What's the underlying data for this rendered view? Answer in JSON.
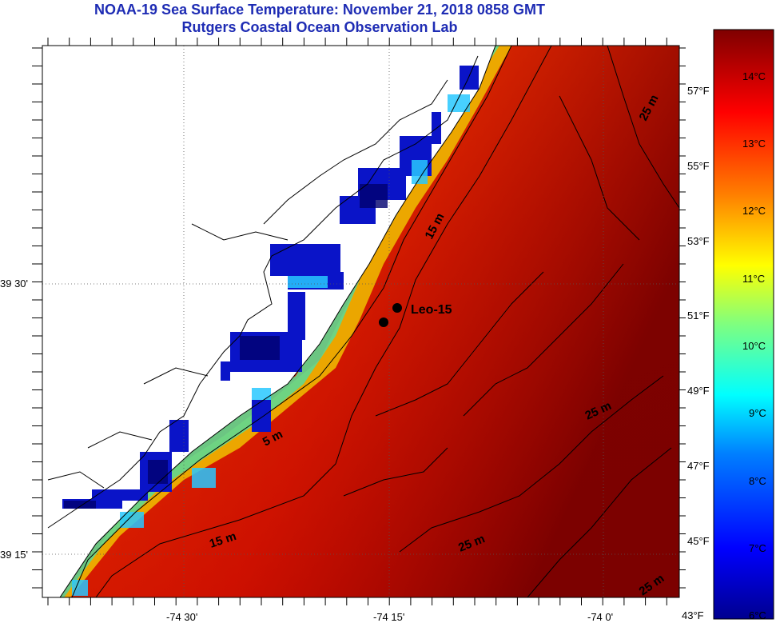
{
  "title": {
    "line1": "NOAA-19 Sea Surface Temperature:  November 21, 2018 0858 GMT",
    "line2": "Rutgers Coastal Ocean Observation Lab"
  },
  "axes": {
    "lat_labels": [
      "39 30'",
      "39 15'"
    ],
    "lon_labels": [
      "-74 30'",
      "-74 15'",
      "-74 0'"
    ]
  },
  "station": {
    "name": "Leo-15"
  },
  "contours": {
    "labels": [
      "15 m",
      "5 m",
      "15 m",
      "25 m",
      "25 m",
      "25 m",
      "25 m"
    ]
  },
  "colorbar": {
    "celsius": [
      "14°C",
      "13°C",
      "12°C",
      "11°C",
      "10°C",
      "9°C",
      "8°C",
      "7°C",
      "6°C"
    ],
    "fahrenheit": [
      "57°F",
      "55°F",
      "53°F",
      "51°F",
      "49°F",
      "47°F",
      "45°F",
      "43°F"
    ]
  },
  "colors": {
    "title": "#1e2cb4",
    "warm": "#c40000",
    "cold": "#00008c",
    "land": "#ffffff"
  }
}
